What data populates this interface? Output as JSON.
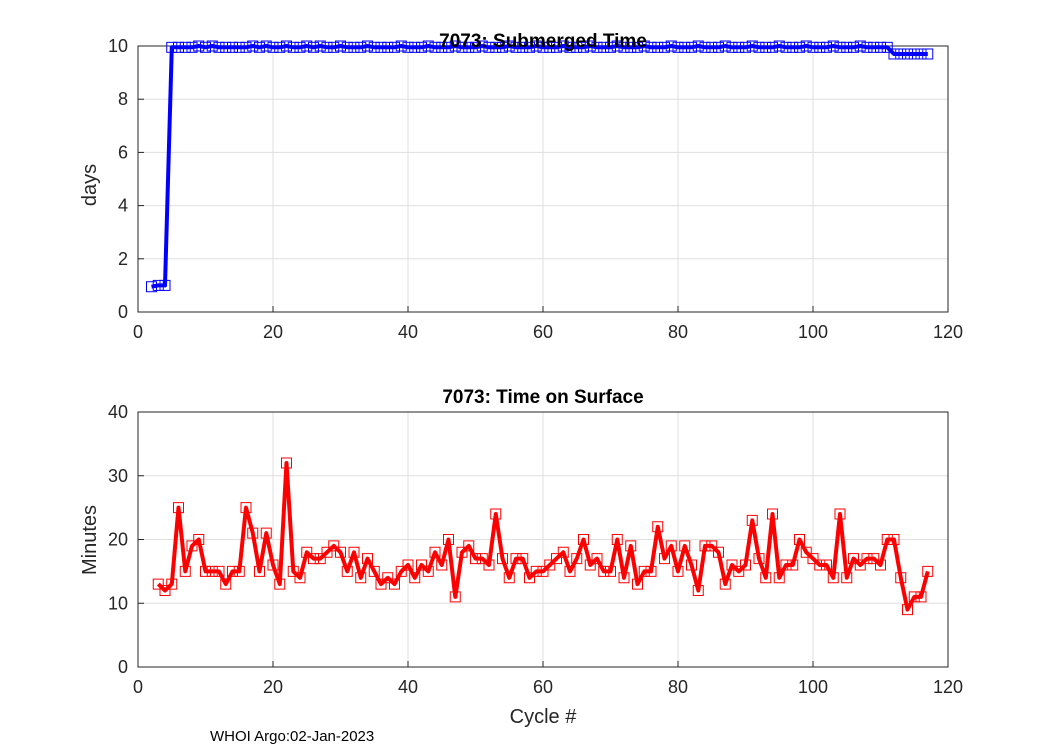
{
  "footer": "WHOI Argo:02-Jan-2023",
  "chart_data": [
    {
      "type": "line",
      "title": "7073: Submerged Time",
      "xlabel": "",
      "ylabel": "days",
      "xlim": [
        0,
        120
      ],
      "ylim": [
        0,
        10
      ],
      "xticks": [
        0,
        20,
        40,
        60,
        80,
        100,
        120
      ],
      "yticks": [
        0,
        2,
        4,
        6,
        8,
        10
      ],
      "grid": true,
      "series": [
        {
          "color": "#0000ff",
          "marker": "square",
          "x": [
            2,
            3,
            4,
            5,
            6,
            7,
            8,
            9,
            10,
            11,
            12,
            13,
            14,
            15,
            16,
            17,
            18,
            19,
            20,
            21,
            22,
            23,
            24,
            25,
            26,
            27,
            28,
            29,
            30,
            31,
            32,
            33,
            34,
            35,
            36,
            37,
            38,
            39,
            40,
            41,
            42,
            43,
            44,
            45,
            46,
            47,
            48,
            49,
            50,
            51,
            52,
            53,
            54,
            55,
            56,
            57,
            58,
            59,
            60,
            61,
            62,
            63,
            64,
            65,
            66,
            67,
            68,
            69,
            70,
            71,
            72,
            73,
            74,
            75,
            76,
            77,
            78,
            79,
            80,
            81,
            82,
            83,
            84,
            85,
            86,
            87,
            88,
            89,
            90,
            91,
            92,
            93,
            94,
            95,
            96,
            97,
            98,
            99,
            100,
            101,
            102,
            103,
            104,
            105,
            106,
            107,
            108,
            109,
            110,
            111,
            112,
            113,
            114,
            115,
            116,
            117
          ],
          "y": [
            0.95,
            1.0,
            1.0,
            9.95,
            9.95,
            9.95,
            9.95,
            10.0,
            9.95,
            10.0,
            9.95,
            9.95,
            9.95,
            9.95,
            9.95,
            10.0,
            9.95,
            10.0,
            9.95,
            9.95,
            10.0,
            9.95,
            9.95,
            10.0,
            9.95,
            10.0,
            9.95,
            9.95,
            10.0,
            9.95,
            9.95,
            9.95,
            10.0,
            9.95,
            9.95,
            9.95,
            9.95,
            10.0,
            9.95,
            9.95,
            9.95,
            10.0,
            9.95,
            9.95,
            9.95,
            10.0,
            9.95,
            9.95,
            9.95,
            10.0,
            9.95,
            9.95,
            9.95,
            10.0,
            9.95,
            9.95,
            9.95,
            10.0,
            9.95,
            9.95,
            9.95,
            10.0,
            9.95,
            9.95,
            9.95,
            10.0,
            9.95,
            9.95,
            9.95,
            10.0,
            9.95,
            9.95,
            9.95,
            10.0,
            9.95,
            9.95,
            9.95,
            10.0,
            9.95,
            9.95,
            9.95,
            10.0,
            9.95,
            9.95,
            9.95,
            10.0,
            9.95,
            9.95,
            9.95,
            10.0,
            9.95,
            9.95,
            9.95,
            10.0,
            9.95,
            9.95,
            9.95,
            10.0,
            9.95,
            9.95,
            9.95,
            10.0,
            9.95,
            9.95,
            9.95,
            10.0,
            9.95,
            9.95,
            9.95,
            9.95,
            9.7,
            9.7,
            9.7,
            9.7,
            9.7,
            9.7
          ]
        }
      ]
    },
    {
      "type": "line",
      "title": "7073: Time on Surface",
      "xlabel": "Cycle #",
      "ylabel": "Minutes",
      "xlim": [
        0,
        120
      ],
      "ylim": [
        0,
        40
      ],
      "xticks": [
        0,
        20,
        40,
        60,
        80,
        100,
        120
      ],
      "yticks": [
        0,
        10,
        20,
        30,
        40
      ],
      "grid": true,
      "series": [
        {
          "color": "#ff0000",
          "marker": "square",
          "x": [
            3,
            4,
            5,
            6,
            7,
            8,
            9,
            10,
            11,
            12,
            13,
            14,
            15,
            16,
            17,
            18,
            19,
            20,
            21,
            22,
            23,
            24,
            25,
            26,
            27,
            28,
            29,
            30,
            31,
            32,
            33,
            34,
            35,
            36,
            37,
            38,
            39,
            40,
            41,
            42,
            43,
            44,
            45,
            46,
            47,
            48,
            49,
            50,
            51,
            52,
            53,
            54,
            55,
            56,
            57,
            58,
            59,
            60,
            61,
            62,
            63,
            64,
            65,
            66,
            67,
            68,
            69,
            70,
            71,
            72,
            73,
            74,
            75,
            76,
            77,
            78,
            79,
            80,
            81,
            82,
            83,
            84,
            85,
            86,
            87,
            88,
            89,
            90,
            91,
            92,
            93,
            94,
            95,
            96,
            97,
            98,
            99,
            100,
            101,
            102,
            103,
            104,
            105,
            106,
            107,
            108,
            109,
            110,
            111,
            112,
            113,
            114,
            115,
            116,
            117
          ],
          "y": [
            13,
            12,
            13,
            25,
            15,
            19,
            20,
            15,
            15,
            15,
            13,
            15,
            15,
            25,
            21,
            15,
            21,
            16,
            13,
            32,
            15,
            14,
            18,
            17,
            17,
            18,
            19,
            18,
            15,
            18,
            14,
            17,
            15,
            13,
            14,
            13,
            15,
            16,
            14,
            16,
            15,
            18,
            16,
            20,
            11,
            18,
            19,
            17,
            17,
            16,
            24,
            17,
            14,
            17,
            17,
            14,
            15,
            15,
            16,
            17,
            18,
            15,
            17,
            20,
            16,
            17,
            15,
            15,
            20,
            14,
            19,
            13,
            15,
            15,
            22,
            17,
            19,
            15,
            19,
            16,
            12,
            19,
            19,
            18,
            13,
            16,
            15,
            16,
            23,
            17,
            14,
            24,
            14,
            16,
            16,
            20,
            18,
            17,
            16,
            16,
            14,
            24,
            14,
            17,
            16,
            17,
            17,
            16,
            20,
            20,
            14,
            9,
            11,
            11,
            15
          ]
        }
      ]
    }
  ]
}
